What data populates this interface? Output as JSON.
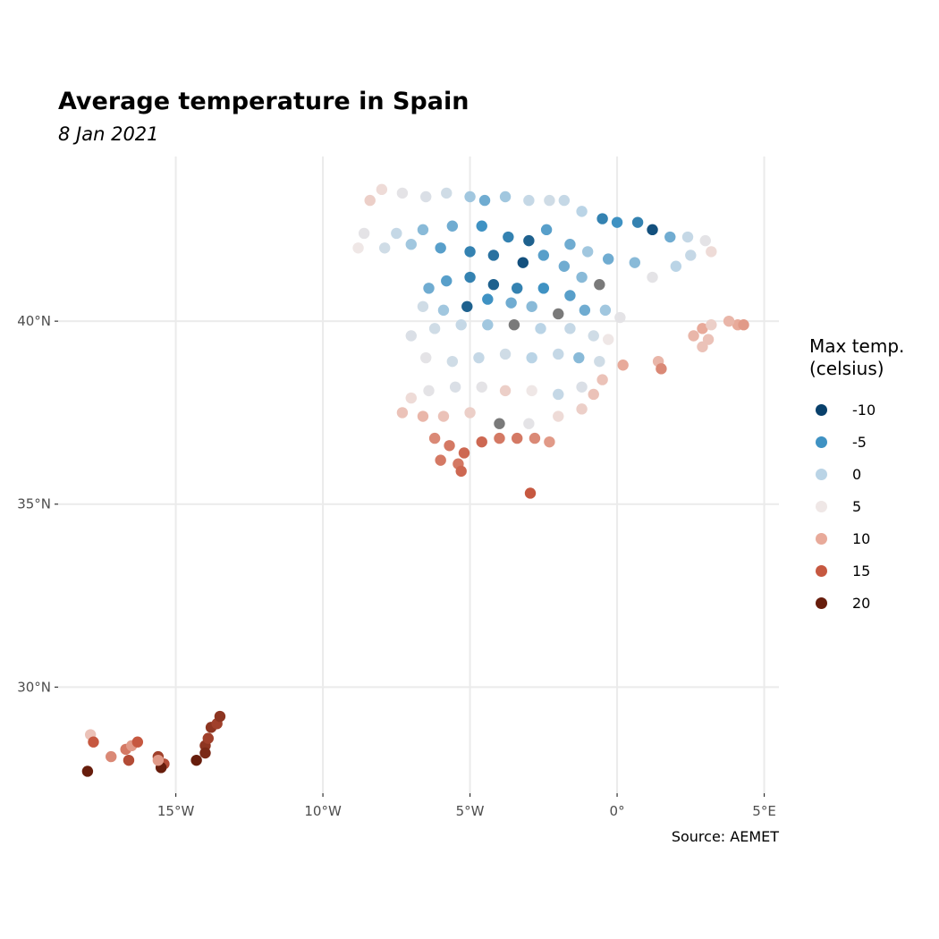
{
  "chart_data": {
    "type": "scatter",
    "title": "Average temperature in Spain",
    "subtitle": "8 Jan 2021",
    "caption": "Source: AEMET",
    "x_ticks": [
      {
        "value": -15,
        "label": "15°W"
      },
      {
        "value": -10,
        "label": "10°W"
      },
      {
        "value": -5,
        "label": "5°W"
      },
      {
        "value": 0,
        "label": "0°"
      },
      {
        "value": 5,
        "label": "5°E"
      }
    ],
    "y_ticks": [
      {
        "value": 40,
        "label": "40°N"
      },
      {
        "value": 35,
        "label": "35°N"
      },
      {
        "value": 30,
        "label": "30°N"
      }
    ],
    "xlim": [
      -19.0,
      5.5
    ],
    "ylim": [
      27.1,
      44.5
    ],
    "grid": true,
    "legend": {
      "title_lines": [
        "Max temp.",
        "(celsius)"
      ],
      "position": "right",
      "entries": [
        {
          "label": "-10",
          "value": -10,
          "color": "#08406b"
        },
        {
          "label": "-5",
          "value": -5,
          "color": "#3f92c3"
        },
        {
          "label": "0",
          "value": 0,
          "color": "#bad4e6"
        },
        {
          "label": "5",
          "value": 5,
          "color": "#efe7e6"
        },
        {
          "label": "10",
          "value": 10,
          "color": "#e8aa9a"
        },
        {
          "label": "15",
          "value": 15,
          "color": "#c65840"
        },
        {
          "label": "20",
          "value": 20,
          "color": "#671d0c"
        }
      ]
    },
    "na_color": "#7a7a7a",
    "point_sample": [
      {
        "lon": -8.4,
        "lat": 43.3,
        "value": 7
      },
      {
        "lon": -8.0,
        "lat": 43.6,
        "value": 6
      },
      {
        "lon": -7.3,
        "lat": 43.5,
        "value": 4
      },
      {
        "lon": -6.5,
        "lat": 43.4,
        "value": 3
      },
      {
        "lon": -5.8,
        "lat": 43.5,
        "value": 2
      },
      {
        "lon": -5.0,
        "lat": 43.4,
        "value": -1
      },
      {
        "lon": -4.5,
        "lat": 43.3,
        "value": -3
      },
      {
        "lon": -3.8,
        "lat": 43.4,
        "value": -1
      },
      {
        "lon": -3.0,
        "lat": 43.3,
        "value": 1
      },
      {
        "lon": -2.3,
        "lat": 43.3,
        "value": 2
      },
      {
        "lon": -1.8,
        "lat": 43.3,
        "value": 1
      },
      {
        "lon": -1.2,
        "lat": 43.0,
        "value": 0
      },
      {
        "lon": -0.5,
        "lat": 42.8,
        "value": -6
      },
      {
        "lon": 0.0,
        "lat": 42.7,
        "value": -5
      },
      {
        "lon": 0.7,
        "lat": 42.7,
        "value": -6
      },
      {
        "lon": 1.2,
        "lat": 42.5,
        "value": -9
      },
      {
        "lon": 1.8,
        "lat": 42.3,
        "value": -3
      },
      {
        "lon": 2.4,
        "lat": 42.3,
        "value": 1
      },
      {
        "lon": 3.0,
        "lat": 42.2,
        "value": 4
      },
      {
        "lon": 3.2,
        "lat": 41.9,
        "value": 6
      },
      {
        "lon": 2.5,
        "lat": 41.8,
        "value": 1
      },
      {
        "lon": 2.0,
        "lat": 41.5,
        "value": 0
      },
      {
        "lon": 1.2,
        "lat": 41.2,
        "value": 4
      },
      {
        "lon": 0.6,
        "lat": 41.6,
        "value": -2
      },
      {
        "lon": -0.3,
        "lat": 41.7,
        "value": -3
      },
      {
        "lon": -1.0,
        "lat": 41.9,
        "value": -1
      },
      {
        "lon": -1.6,
        "lat": 42.1,
        "value": -3
      },
      {
        "lon": -2.4,
        "lat": 42.5,
        "value": -4
      },
      {
        "lon": -3.0,
        "lat": 42.2,
        "value": -8
      },
      {
        "lon": -3.7,
        "lat": 42.3,
        "value": -6
      },
      {
        "lon": -4.6,
        "lat": 42.6,
        "value": -5
      },
      {
        "lon": -5.6,
        "lat": 42.6,
        "value": -3
      },
      {
        "lon": -6.6,
        "lat": 42.5,
        "value": -2
      },
      {
        "lon": -7.5,
        "lat": 42.4,
        "value": 1
      },
      {
        "lon": -8.6,
        "lat": 42.4,
        "value": 4
      },
      {
        "lon": -8.8,
        "lat": 42.0,
        "value": 5
      },
      {
        "lon": -7.9,
        "lat": 42.0,
        "value": 2
      },
      {
        "lon": -7.0,
        "lat": 42.1,
        "value": -1
      },
      {
        "lon": -6.0,
        "lat": 42.0,
        "value": -4
      },
      {
        "lon": -5.0,
        "lat": 41.9,
        "value": -6
      },
      {
        "lon": -4.2,
        "lat": 41.8,
        "value": -7
      },
      {
        "lon": -3.2,
        "lat": 41.6,
        "value": -9
      },
      {
        "lon": -2.5,
        "lat": 41.8,
        "value": -4
      },
      {
        "lon": -1.8,
        "lat": 41.5,
        "value": -3
      },
      {
        "lon": -1.2,
        "lat": 41.2,
        "value": -2
      },
      {
        "lon": -0.6,
        "lat": 41.0,
        "value": null
      },
      {
        "lon": -1.6,
        "lat": 40.7,
        "value": -4
      },
      {
        "lon": -2.5,
        "lat": 40.9,
        "value": -5
      },
      {
        "lon": -3.4,
        "lat": 40.9,
        "value": -6
      },
      {
        "lon": -4.2,
        "lat": 41.0,
        "value": -8
      },
      {
        "lon": -5.0,
        "lat": 41.2,
        "value": -6
      },
      {
        "lon": -5.8,
        "lat": 41.1,
        "value": -4
      },
      {
        "lon": -6.4,
        "lat": 40.9,
        "value": -3
      },
      {
        "lon": -6.6,
        "lat": 40.4,
        "value": 2
      },
      {
        "lon": -5.9,
        "lat": 40.3,
        "value": -1
      },
      {
        "lon": -5.1,
        "lat": 40.4,
        "value": -8
      },
      {
        "lon": -4.4,
        "lat": 40.6,
        "value": -5
      },
      {
        "lon": -3.6,
        "lat": 40.5,
        "value": -3
      },
      {
        "lon": -2.9,
        "lat": 40.4,
        "value": -2
      },
      {
        "lon": -2.0,
        "lat": 40.2,
        "value": null
      },
      {
        "lon": -1.1,
        "lat": 40.3,
        "value": -3
      },
      {
        "lon": -0.4,
        "lat": 40.3,
        "value": -1
      },
      {
        "lon": 0.1,
        "lat": 40.1,
        "value": 4
      },
      {
        "lon": -0.3,
        "lat": 39.5,
        "value": 5
      },
      {
        "lon": -0.8,
        "lat": 39.6,
        "value": 2
      },
      {
        "lon": -1.6,
        "lat": 39.8,
        "value": 1
      },
      {
        "lon": -2.6,
        "lat": 39.8,
        "value": 0
      },
      {
        "lon": -3.5,
        "lat": 39.9,
        "value": null
      },
      {
        "lon": -4.4,
        "lat": 39.9,
        "value": -1
      },
      {
        "lon": -5.3,
        "lat": 39.9,
        "value": 1
      },
      {
        "lon": -6.2,
        "lat": 39.8,
        "value": 2
      },
      {
        "lon": -7.0,
        "lat": 39.6,
        "value": 3
      },
      {
        "lon": -6.5,
        "lat": 39.0,
        "value": 4
      },
      {
        "lon": -5.6,
        "lat": 38.9,
        "value": 2
      },
      {
        "lon": -4.7,
        "lat": 39.0,
        "value": 1
      },
      {
        "lon": -3.8,
        "lat": 39.1,
        "value": 2
      },
      {
        "lon": -2.9,
        "lat": 39.0,
        "value": 0
      },
      {
        "lon": -2.0,
        "lat": 39.1,
        "value": 1
      },
      {
        "lon": -1.3,
        "lat": 39.0,
        "value": -2
      },
      {
        "lon": -0.6,
        "lat": 38.9,
        "value": 2
      },
      {
        "lon": 0.2,
        "lat": 38.8,
        "value": 10
      },
      {
        "lon": -0.5,
        "lat": 38.4,
        "value": 8
      },
      {
        "lon": -1.2,
        "lat": 38.2,
        "value": 3
      },
      {
        "lon": -2.0,
        "lat": 38.0,
        "value": 1
      },
      {
        "lon": -2.9,
        "lat": 38.1,
        "value": 5
      },
      {
        "lon": -3.8,
        "lat": 38.1,
        "value": 7
      },
      {
        "lon": -4.6,
        "lat": 38.2,
        "value": 4
      },
      {
        "lon": -5.5,
        "lat": 38.2,
        "value": 3
      },
      {
        "lon": -6.4,
        "lat": 38.1,
        "value": 4
      },
      {
        "lon": -7.0,
        "lat": 37.9,
        "value": 6
      },
      {
        "lon": -7.3,
        "lat": 37.5,
        "value": 8
      },
      {
        "lon": -6.6,
        "lat": 37.4,
        "value": 9
      },
      {
        "lon": -5.9,
        "lat": 37.4,
        "value": 8
      },
      {
        "lon": -5.0,
        "lat": 37.5,
        "value": 7
      },
      {
        "lon": -4.0,
        "lat": 37.2,
        "value": null
      },
      {
        "lon": -3.0,
        "lat": 37.2,
        "value": 4
      },
      {
        "lon": -2.0,
        "lat": 37.4,
        "value": 6
      },
      {
        "lon": -1.2,
        "lat": 37.6,
        "value": 7
      },
      {
        "lon": -0.8,
        "lat": 38.0,
        "value": 8
      },
      {
        "lon": -6.2,
        "lat": 36.8,
        "value": 12
      },
      {
        "lon": -5.7,
        "lat": 36.6,
        "value": 13
      },
      {
        "lon": -5.2,
        "lat": 36.4,
        "value": 14
      },
      {
        "lon": -4.6,
        "lat": 36.7,
        "value": 14
      },
      {
        "lon": -4.0,
        "lat": 36.8,
        "value": 13
      },
      {
        "lon": -3.4,
        "lat": 36.8,
        "value": 13
      },
      {
        "lon": -2.8,
        "lat": 36.8,
        "value": 12
      },
      {
        "lon": -2.3,
        "lat": 36.7,
        "value": 11
      },
      {
        "lon": -5.4,
        "lat": 36.1,
        "value": 13
      },
      {
        "lon": -5.3,
        "lat": 35.9,
        "value": 14
      },
      {
        "lon": -6.0,
        "lat": 36.2,
        "value": 13
      },
      {
        "lon": -2.95,
        "lat": 35.3,
        "value": 15
      },
      {
        "lon": 1.4,
        "lat": 38.9,
        "value": 9
      },
      {
        "lon": 1.5,
        "lat": 38.7,
        "value": 12
      },
      {
        "lon": 2.6,
        "lat": 39.6,
        "value": 9
      },
      {
        "lon": 2.9,
        "lat": 39.8,
        "value": 10
      },
      {
        "lon": 3.1,
        "lat": 39.5,
        "value": 8
      },
      {
        "lon": 3.2,
        "lat": 39.9,
        "value": 7
      },
      {
        "lon": 2.9,
        "lat": 39.3,
        "value": 8
      },
      {
        "lon": 4.1,
        "lat": 39.9,
        "value": 10
      },
      {
        "lon": 3.8,
        "lat": 40.0,
        "value": 9
      },
      {
        "lon": 4.3,
        "lat": 39.9,
        "value": 11
      },
      {
        "lon": -18.0,
        "lat": 27.7,
        "value": 20
      },
      {
        "lon": -17.9,
        "lat": 28.7,
        "value": 8
      },
      {
        "lon": -17.8,
        "lat": 28.5,
        "value": 15
      },
      {
        "lon": -17.2,
        "lat": 28.1,
        "value": 12
      },
      {
        "lon": -16.7,
        "lat": 28.3,
        "value": 13
      },
      {
        "lon": -16.5,
        "lat": 28.4,
        "value": 11
      },
      {
        "lon": -16.3,
        "lat": 28.5,
        "value": 15
      },
      {
        "lon": -16.6,
        "lat": 28.0,
        "value": 16
      },
      {
        "lon": -15.6,
        "lat": 28.1,
        "value": 17
      },
      {
        "lon": -15.4,
        "lat": 27.9,
        "value": 16
      },
      {
        "lon": -15.5,
        "lat": 27.8,
        "value": 20
      },
      {
        "lon": -15.6,
        "lat": 28.0,
        "value": 11
      },
      {
        "lon": -14.3,
        "lat": 28.0,
        "value": 21
      },
      {
        "lon": -14.0,
        "lat": 28.4,
        "value": 18
      },
      {
        "lon": -13.9,
        "lat": 28.6,
        "value": 17
      },
      {
        "lon": -13.8,
        "lat": 28.9,
        "value": 18
      },
      {
        "lon": -13.6,
        "lat": 29.0,
        "value": 17
      },
      {
        "lon": -13.5,
        "lat": 29.2,
        "value": 18
      },
      {
        "lon": -14.0,
        "lat": 28.2,
        "value": 19
      }
    ]
  }
}
